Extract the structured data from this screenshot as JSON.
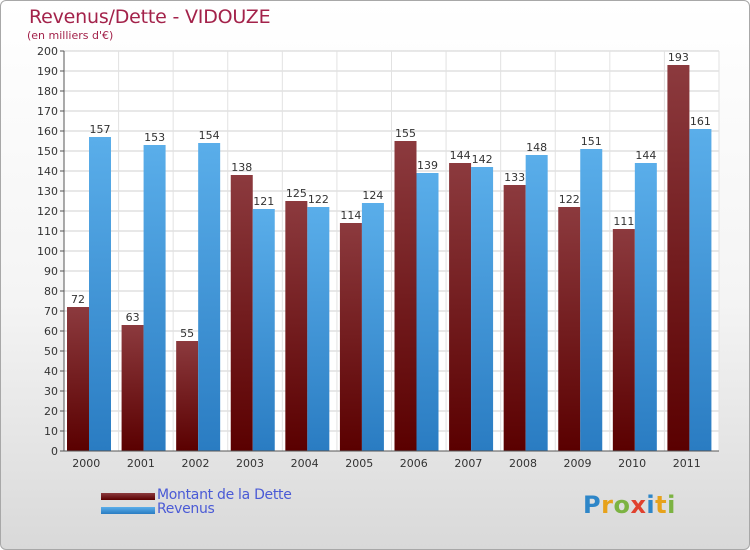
{
  "header": {
    "title": "Revenus/Dette - VIDOUZE",
    "subtitle": "(en milliers d'€)"
  },
  "legend": {
    "items": [
      {
        "label": "Montant de la Dette",
        "color": "#6b0f14"
      },
      {
        "label": "Revenus",
        "color": "#3f94dc"
      }
    ]
  },
  "logo": {
    "text": "Proxiti",
    "letters": [
      {
        "ch": "P",
        "color": "#2e86c8"
      },
      {
        "ch": "r",
        "color": "#e7a21b"
      },
      {
        "ch": "o",
        "color": "#7cb342"
      },
      {
        "ch": "x",
        "color": "#e0412e"
      },
      {
        "ch": "i",
        "color": "#2e86c8"
      },
      {
        "ch": "t",
        "color": "#e7a21b"
      },
      {
        "ch": "i",
        "color": "#7cb342"
      }
    ]
  },
  "chart_data": {
    "type": "bar",
    "title": "Revenus/Dette - VIDOUZE",
    "ylabel": "(en milliers d'€)",
    "xlabel": "",
    "categories": [
      "2000",
      "2001",
      "2002",
      "2003",
      "2004",
      "2005",
      "2006",
      "2007",
      "2008",
      "2009",
      "2010",
      "2011"
    ],
    "series": [
      {
        "name": "Montant de la Dette",
        "color": "#6b0f14",
        "values": [
          72,
          63,
          55,
          138,
          125,
          114,
          155,
          144,
          133,
          122,
          111,
          193
        ]
      },
      {
        "name": "Revenus",
        "color": "#3f94dc",
        "values": [
          157,
          153,
          154,
          121,
          122,
          124,
          139,
          142,
          148,
          151,
          144,
          161
        ]
      }
    ],
    "ylim": [
      0,
      200
    ],
    "ytick_step": 10,
    "grid": true,
    "data_labels": true,
    "legend_position": "bottom-left"
  }
}
